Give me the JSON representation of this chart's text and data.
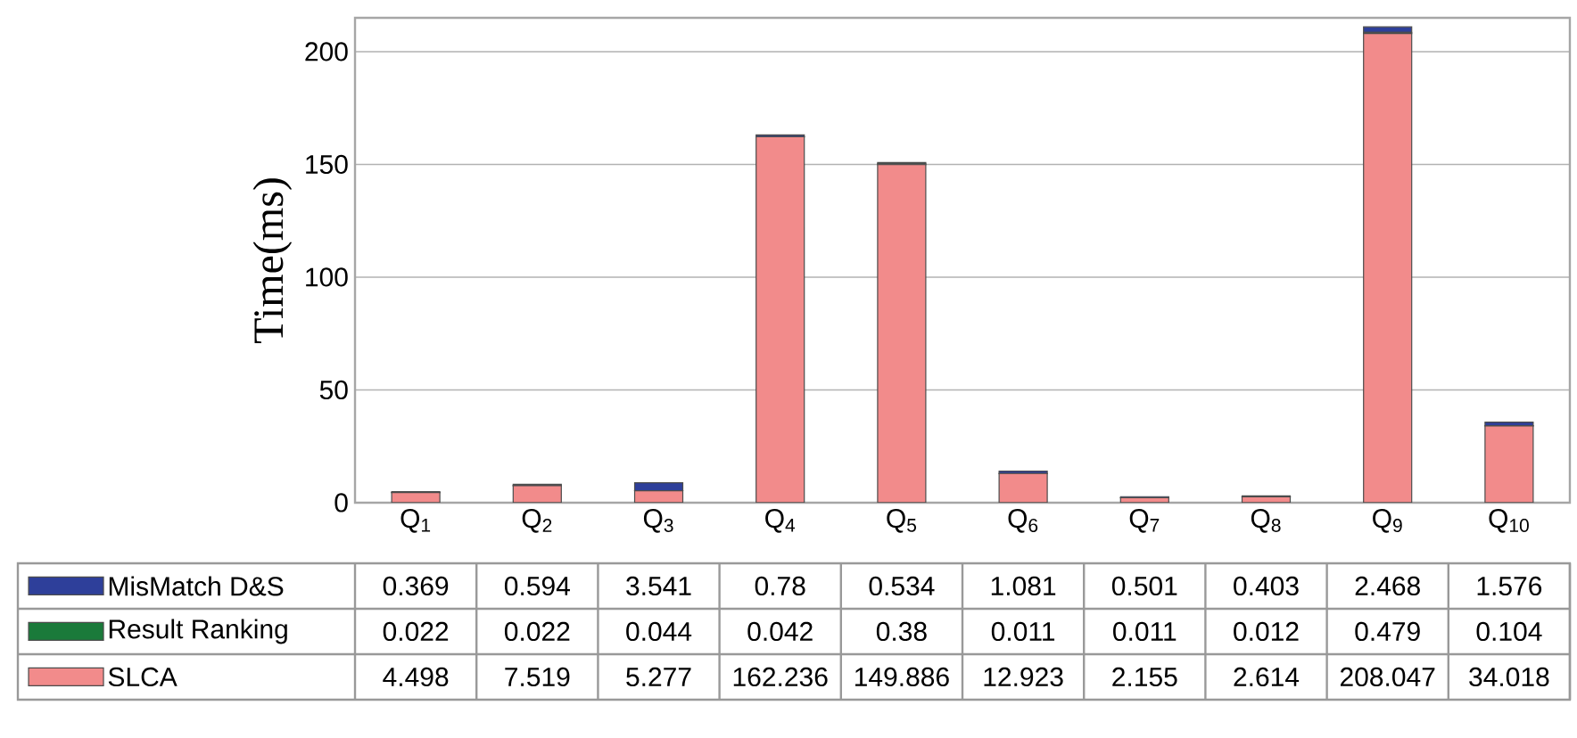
{
  "chart_data": {
    "type": "bar",
    "stacked": true,
    "ylabel": "Time(ms)",
    "categories": [
      "Q$_{1}$",
      "Q$_{2}$",
      "Q$_{3}$",
      "Q$_{4}$",
      "Q$_{5}$",
      "Q$_{6}$",
      "Q$_{7}$",
      "Q$_{8}$",
      "Q$_{9}$",
      "Q$_{10}$"
    ],
    "series": [
      {
        "name": "SLCA",
        "color": "#f28b8b",
        "values": [
          4.498,
          7.519,
          5.277,
          162.236,
          149.886,
          12.923,
          2.155,
          2.614,
          208.047,
          34.018
        ]
      },
      {
        "name": "Result Ranking",
        "color": "#1a7a3a",
        "values": [
          0.022,
          0.022,
          0.044,
          0.042,
          0.38,
          0.011,
          0.011,
          0.012,
          0.479,
          0.104
        ]
      },
      {
        "name": "MisMatch D&S",
        "color": "#2e3f9a",
        "values": [
          0.369,
          0.594,
          3.541,
          0.78,
          0.534,
          1.081,
          0.501,
          0.403,
          2.468,
          1.576
        ]
      }
    ],
    "ylim": [
      0,
      215
    ],
    "yticks": [
      0,
      50,
      100,
      150,
      200
    ],
    "grid": "y",
    "legend": "bottom",
    "data_labels": true
  }
}
